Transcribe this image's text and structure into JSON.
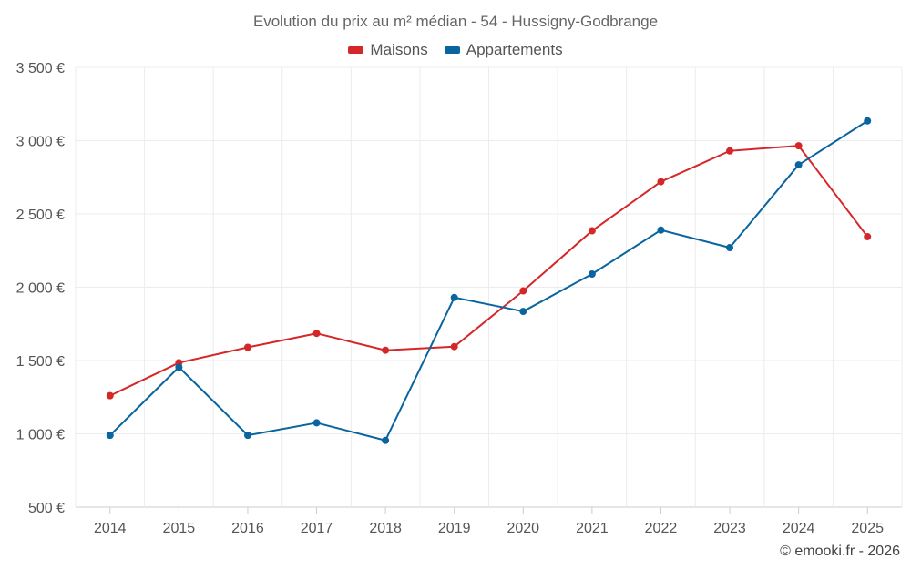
{
  "chart_data": {
    "type": "line",
    "title": "Evolution du prix au m² médian - 54 - Hussigny-Godbrange",
    "categories": [
      "2014",
      "2015",
      "2016",
      "2017",
      "2018",
      "2019",
      "2020",
      "2021",
      "2022",
      "2023",
      "2024",
      "2025"
    ],
    "series": [
      {
        "name": "Maisons",
        "color": "#d62728",
        "values": [
          1260,
          1485,
          1590,
          1685,
          1570,
          1595,
          1975,
          2385,
          2720,
          2930,
          2965,
          2345
        ]
      },
      {
        "name": "Appartements",
        "color": "#0a64a0",
        "values": [
          990,
          1455,
          990,
          1075,
          955,
          1930,
          1835,
          2090,
          2390,
          2270,
          2835,
          3135
        ]
      }
    ],
    "ylim": [
      500,
      3500
    ],
    "yticks": [
      500,
      1000,
      1500,
      2000,
      2500,
      3000,
      3500
    ],
    "ytick_labels": [
      "500 €",
      "1 000 €",
      "1 500 €",
      "2 000 €",
      "2 500 €",
      "3 000 €",
      "3 500 €"
    ],
    "xlabel": "",
    "ylabel": "",
    "grid": true,
    "legend_position": "top-center"
  },
  "credit": "© emooki.fr - 2026"
}
